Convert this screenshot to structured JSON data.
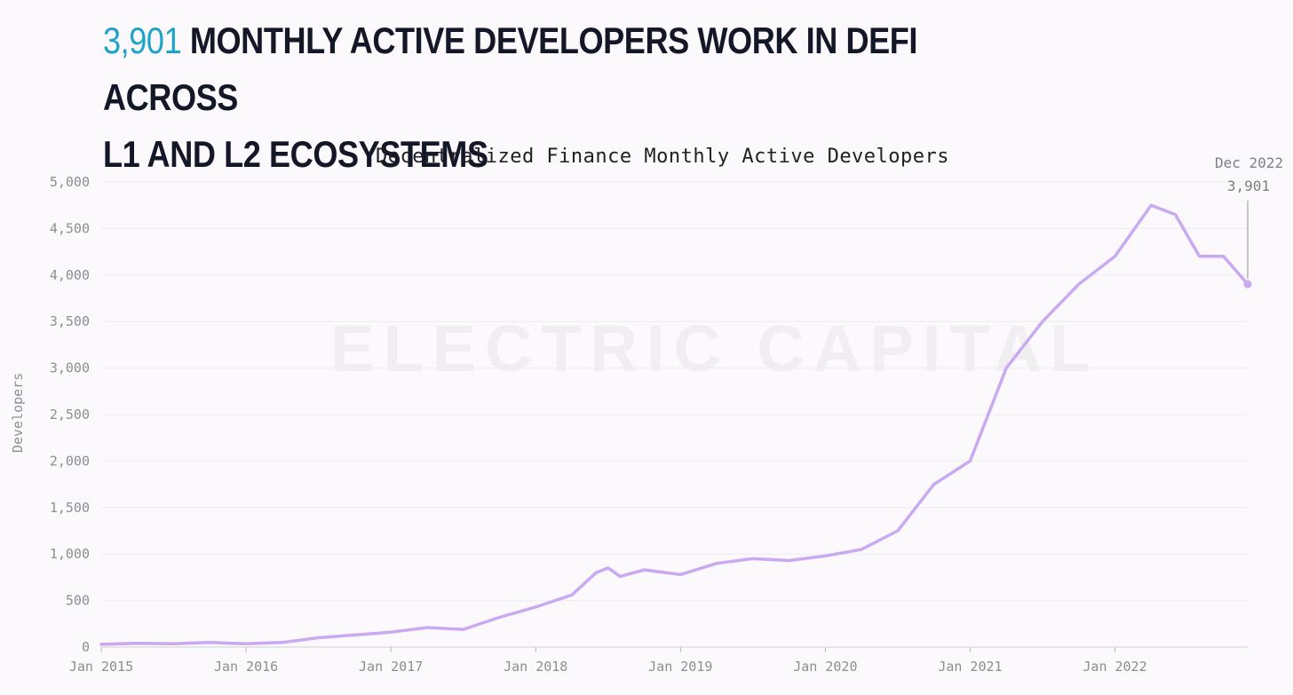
{
  "headline": {
    "highlight": "3,901",
    "line1_rest": "MONTHLY ACTIVE DEVELOPERS WORK IN DEFI ACROSS",
    "line2": "L1 AND L2 ECOSYSTEMS"
  },
  "watermark": "ELECTRIC CAPITAL",
  "colors": {
    "highlight": "#1fa3c8",
    "headline": "#141727",
    "line": "#c9aaf2",
    "grid": "#ecebef",
    "axis_text": "#8d8d95"
  },
  "chart_data": {
    "type": "line",
    "title": "Decentralized Finance Monthly Active Developers",
    "ylabel": "Developers",
    "xlabel": "",
    "ylim": [
      0,
      5000
    ],
    "xlim": [
      "2015-01",
      "2022-12"
    ],
    "grid": true,
    "y_ticks": [
      "0",
      "500",
      "1,000",
      "1,500",
      "2,000",
      "2,500",
      "3,000",
      "3,500",
      "4,000",
      "4,500",
      "5,000"
    ],
    "x_ticks": [
      "Jan 2015",
      "Jan 2016",
      "Jan 2017",
      "Jan 2018",
      "Jan 2019",
      "Jan 2020",
      "Jan 2021",
      "Jan 2022"
    ],
    "series": [
      {
        "color": "#c9aaf2",
        "points": [
          [
            "2015-01",
            30
          ],
          [
            "2015-04",
            40
          ],
          [
            "2015-07",
            35
          ],
          [
            "2015-10",
            50
          ],
          [
            "2016-01",
            35
          ],
          [
            "2016-04",
            50
          ],
          [
            "2016-07",
            100
          ],
          [
            "2016-10",
            130
          ],
          [
            "2017-01",
            160
          ],
          [
            "2017-04",
            210
          ],
          [
            "2017-07",
            190
          ],
          [
            "2017-10",
            320
          ],
          [
            "2018-01",
            430
          ],
          [
            "2018-04",
            560
          ],
          [
            "2018-06",
            800
          ],
          [
            "2018-07",
            850
          ],
          [
            "2018-08",
            760
          ],
          [
            "2018-10",
            830
          ],
          [
            "2019-01",
            780
          ],
          [
            "2019-04",
            900
          ],
          [
            "2019-07",
            950
          ],
          [
            "2019-10",
            930
          ],
          [
            "2020-01",
            980
          ],
          [
            "2020-04",
            1050
          ],
          [
            "2020-07",
            1250
          ],
          [
            "2020-10",
            1750
          ],
          [
            "2021-01",
            2000
          ],
          [
            "2021-04",
            3000
          ],
          [
            "2021-07",
            3500
          ],
          [
            "2021-10",
            3900
          ],
          [
            "2022-01",
            4200
          ],
          [
            "2022-04",
            4750
          ],
          [
            "2022-06",
            4650
          ],
          [
            "2022-08",
            4200
          ],
          [
            "2022-10",
            4200
          ],
          [
            "2022-12",
            3901
          ]
        ]
      }
    ],
    "annotation": {
      "date": "Dec 2022",
      "value": "3,901"
    }
  }
}
